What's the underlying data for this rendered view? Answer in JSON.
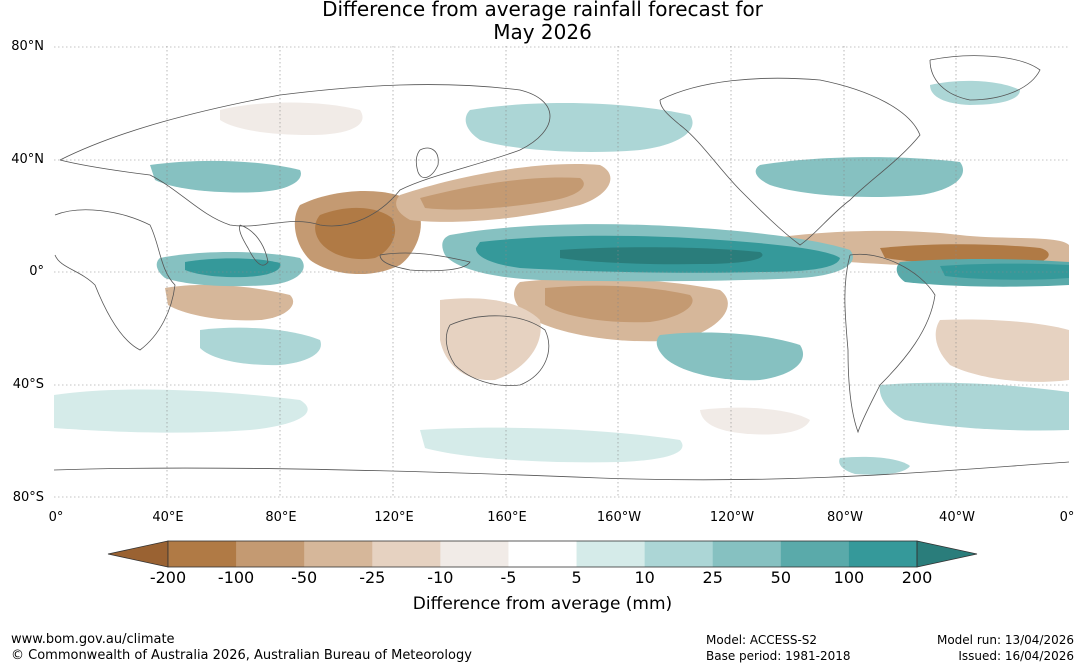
{
  "title": {
    "line1": "Difference from average rainfall forecast for",
    "line2": "May 2026"
  },
  "map": {
    "description_name": "global rainfall anomaly map",
    "lat_labels": [
      "80°N",
      "40°N",
      "0°",
      "40°S",
      "80°S"
    ],
    "lon_labels": [
      "0°",
      "40°E",
      "80°E",
      "120°E",
      "160°E",
      "160°W",
      "120°W",
      "80°W",
      "40°W",
      "0°"
    ]
  },
  "legend": {
    "ticks": [
      "-200",
      "-100",
      "-50",
      "-25",
      "-10",
      "-5",
      "5",
      "10",
      "25",
      "50",
      "100",
      "200"
    ],
    "colors": [
      "#9a6232",
      "#b07a45",
      "#c49a72",
      "#d6b79a",
      "#e6d2c1",
      "#f1ebe7",
      "#ffffff",
      "#d5ebe9",
      "#acd6d6",
      "#86c1c1",
      "#5aaaaa",
      "#35999a",
      "#2a7d7b"
    ],
    "label": "Difference from average (mm)"
  },
  "footer": {
    "url": "www.bom.gov.au/climate",
    "copyright": "© Commonwealth of Australia 2026, Australian Bureau of Meteorology",
    "model": "Model: ACCESS-S2",
    "base_period": "Base period: 1981-2018",
    "model_run": "Model run: 13/04/2026",
    "issued": "Issued: 16/04/2026"
  }
}
